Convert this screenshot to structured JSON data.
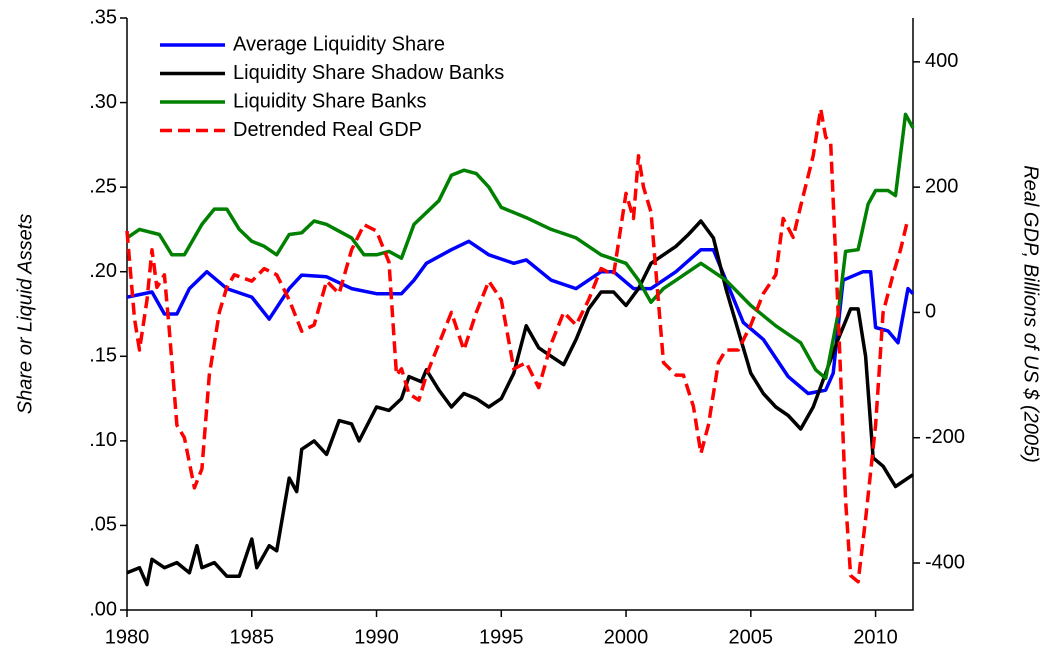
{
  "chart_data": {
    "type": "line",
    "ylabel": "Share or Liquid Assets",
    "y2label": "Real GDP, Billions of US $ (2005)",
    "xlim": [
      1980,
      2011.5
    ],
    "xticks": [
      1980,
      1985,
      1990,
      1995,
      2000,
      2005,
      2010
    ],
    "ylim": [
      0,
      0.35
    ],
    "yticks": [
      {
        "value": 0,
        "label": ".00"
      },
      {
        "value": 0.05,
        "label": ".05"
      },
      {
        "value": 0.1,
        "label": ".10"
      },
      {
        "value": 0.15,
        "label": ".15"
      },
      {
        "value": 0.2,
        "label": ".20"
      },
      {
        "value": 0.25,
        "label": ".25"
      },
      {
        "value": 0.3,
        "label": ".30"
      },
      {
        "value": 0.35,
        "label": ".35"
      }
    ],
    "y2lim": [
      -475,
      470
    ],
    "y2ticks": [
      -400,
      -200,
      0,
      200,
      400
    ],
    "legend": "top-left",
    "series": [
      {
        "name": "Average Liquidity Share",
        "color": "#0000ff",
        "dash": false,
        "x": [
          1980,
          1981,
          1981.5,
          1982,
          1982.5,
          1983.2,
          1984,
          1985,
          1985.7,
          1986.5,
          1987,
          1988,
          1989,
          1990,
          1991,
          1991.5,
          1992,
          1993,
          1993.7,
          1994.5,
          1995.5,
          1996,
          1997,
          1998,
          1999,
          1999.5,
          2000.3,
          2001,
          2002,
          2003,
          2003.5,
          2004,
          2004.7,
          2005.5,
          2006.5,
          2007.3,
          2008,
          2008.3,
          2008.7,
          2009.5,
          2009.8,
          2010,
          2010.5,
          2010.9,
          2011.3,
          2011.5
        ],
        "values": [
          0.185,
          0.188,
          0.175,
          0.175,
          0.19,
          0.2,
          0.19,
          0.185,
          0.172,
          0.19,
          0.198,
          0.197,
          0.19,
          0.187,
          0.187,
          0.195,
          0.205,
          0.213,
          0.218,
          0.21,
          0.205,
          0.207,
          0.195,
          0.19,
          0.2,
          0.2,
          0.19,
          0.19,
          0.2,
          0.213,
          0.213,
          0.195,
          0.17,
          0.16,
          0.138,
          0.128,
          0.13,
          0.14,
          0.195,
          0.2,
          0.2,
          0.167,
          0.165,
          0.158,
          0.19,
          0.187
        ]
      },
      {
        "name": "Liquidity Share Shadow Banks",
        "color": "#000000",
        "dash": false,
        "x": [
          1980,
          1980.5,
          1980.8,
          1981,
          1981.5,
          1982,
          1982.5,
          1982.8,
          1983,
          1983.5,
          1984,
          1984.5,
          1985,
          1985.2,
          1985.7,
          1986,
          1986.5,
          1986.8,
          1987,
          1987.5,
          1988,
          1988.5,
          1989,
          1989.3,
          1990,
          1990.5,
          1991,
          1991.3,
          1991.8,
          1992,
          1992.5,
          1993,
          1993.5,
          1994,
          1994.5,
          1995,
          1995.5,
          1996,
          1996.5,
          1997,
          1997.5,
          1998,
          1998.5,
          1999,
          1999.5,
          2000,
          2000.5,
          2001,
          2001.5,
          2002,
          2002.5,
          2003,
          2003.5,
          2004,
          2004.5,
          2005,
          2005.5,
          2006,
          2006.5,
          2007,
          2007.5,
          2008,
          2008.5,
          2009,
          2009.3,
          2009.6,
          2009.9,
          2010.3,
          2010.8,
          2011.5
        ],
        "values": [
          0.022,
          0.025,
          0.015,
          0.03,
          0.025,
          0.028,
          0.022,
          0.038,
          0.025,
          0.028,
          0.02,
          0.02,
          0.042,
          0.025,
          0.038,
          0.035,
          0.078,
          0.07,
          0.095,
          0.1,
          0.092,
          0.112,
          0.11,
          0.1,
          0.12,
          0.118,
          0.125,
          0.138,
          0.135,
          0.142,
          0.13,
          0.12,
          0.128,
          0.125,
          0.12,
          0.125,
          0.14,
          0.168,
          0.155,
          0.15,
          0.145,
          0.16,
          0.178,
          0.188,
          0.188,
          0.18,
          0.19,
          0.205,
          0.21,
          0.215,
          0.222,
          0.23,
          0.22,
          0.19,
          0.165,
          0.14,
          0.128,
          0.12,
          0.115,
          0.107,
          0.12,
          0.14,
          0.16,
          0.178,
          0.178,
          0.15,
          0.09,
          0.085,
          0.073,
          0.08
        ]
      },
      {
        "name": "Liquidity Share Banks",
        "color": "#008000",
        "dash": false,
        "x": [
          1980,
          1980.5,
          1981.3,
          1981.8,
          1982.3,
          1983,
          1983.5,
          1984,
          1984.5,
          1985,
          1985.5,
          1986,
          1986.5,
          1987,
          1987.5,
          1988,
          1989,
          1989.5,
          1990,
          1990.5,
          1991,
          1991.5,
          1992.5,
          1993,
          1993.5,
          1994,
          1994.5,
          1995,
          1996,
          1997,
          1998,
          1999,
          2000,
          2000.5,
          2001,
          2001.5,
          2002,
          2003,
          2003.5,
          2004,
          2005,
          2006,
          2007,
          2007.6,
          2008,
          2008.5,
          2008.8,
          2009.3,
          2009.7,
          2010,
          2010.5,
          2010.8,
          2011.2,
          2011.5
        ],
        "values": [
          0.22,
          0.225,
          0.222,
          0.21,
          0.21,
          0.228,
          0.237,
          0.237,
          0.225,
          0.218,
          0.215,
          0.21,
          0.222,
          0.223,
          0.23,
          0.228,
          0.22,
          0.21,
          0.21,
          0.212,
          0.208,
          0.228,
          0.242,
          0.257,
          0.26,
          0.258,
          0.25,
          0.238,
          0.232,
          0.225,
          0.22,
          0.21,
          0.205,
          0.195,
          0.182,
          0.19,
          0.195,
          0.205,
          0.2,
          0.195,
          0.18,
          0.168,
          0.158,
          0.142,
          0.137,
          0.175,
          0.212,
          0.213,
          0.24,
          0.248,
          0.248,
          0.245,
          0.293,
          0.285
        ]
      },
      {
        "name": "Detrended Real GDP",
        "color": "#ff0000",
        "dash": true,
        "axis": "y2",
        "x": [
          1980,
          1980.3,
          1980.5,
          1980.8,
          1981,
          1981.2,
          1981.5,
          1981.7,
          1982,
          1982.3,
          1982.7,
          1983,
          1983.3,
          1983.7,
          1984,
          1984.3,
          1985,
          1985.5,
          1986,
          1986.5,
          1987,
          1987.5,
          1988,
          1988.5,
          1989,
          1989.5,
          1990,
          1990.5,
          1990.8,
          1991,
          1991.3,
          1991.7,
          1992,
          1992.5,
          1993,
          1993.5,
          1994,
          1994.5,
          1995,
          1995.5,
          1996,
          1996.5,
          1997,
          1997.5,
          1998,
          1998.5,
          1999,
          1999.5,
          2000,
          2000.3,
          2000.5,
          2000.7,
          2001,
          2001.5,
          2002,
          2002.3,
          2002.7,
          2003,
          2003.3,
          2003.7,
          2004,
          2004.5,
          2005,
          2005.5,
          2006,
          2006.3,
          2006.7,
          2007,
          2007.5,
          2007.8,
          2008,
          2008.2,
          2008.5,
          2008.8,
          2009,
          2009.3,
          2009.6,
          2010,
          2010.3,
          2010.7,
          2011,
          2011.3
        ],
        "values": [
          130,
          -10,
          -60,
          20,
          100,
          40,
          60,
          -30,
          -180,
          -200,
          -280,
          -250,
          -100,
          0,
          40,
          60,
          50,
          70,
          60,
          20,
          -30,
          -20,
          50,
          30,
          100,
          140,
          130,
          80,
          -100,
          -90,
          -130,
          -140,
          -100,
          -50,
          0,
          -60,
          0,
          50,
          20,
          -90,
          -80,
          -120,
          -50,
          0,
          -20,
          20,
          70,
          60,
          190,
          150,
          250,
          200,
          160,
          -80,
          -100,
          -100,
          -150,
          -225,
          -180,
          -80,
          -60,
          -60,
          -20,
          30,
          60,
          150,
          120,
          170,
          250,
          325,
          280,
          270,
          0,
          -300,
          -420,
          -430,
          -330,
          -180,
          0,
          60,
          100,
          150
        ]
      }
    ]
  }
}
